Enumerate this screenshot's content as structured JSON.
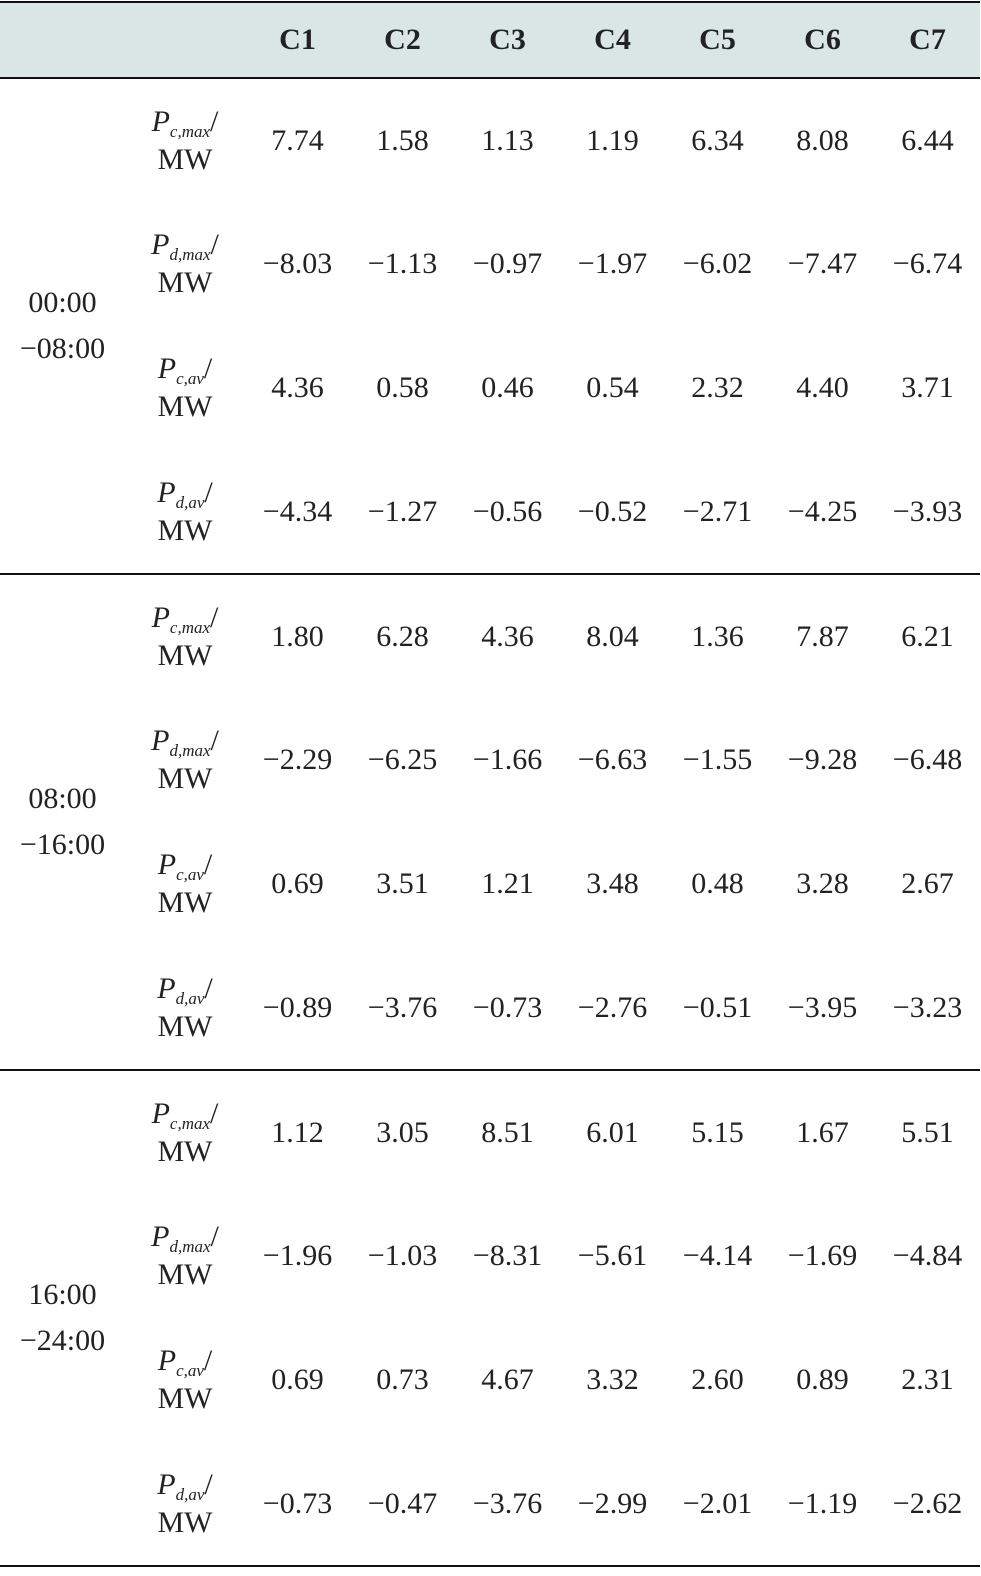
{
  "table": {
    "columns": [
      "C1",
      "C2",
      "C3",
      "C4",
      "C5",
      "C6",
      "C7"
    ],
    "groups": [
      {
        "period": "00:00\n−08:00",
        "rows": [
          {
            "symbol": "P",
            "subscript": "c,max",
            "unit": "/\nMW",
            "values": [
              "7.74",
              "1.58",
              "1.13",
              "1.19",
              "6.34",
              "8.08",
              "6.44"
            ]
          },
          {
            "symbol": "P",
            "subscript": "d,max",
            "unit": "/\nMW",
            "values": [
              "−8.03",
              "−1.13",
              "−0.97",
              "−1.97",
              "−6.02",
              "−7.47",
              "−6.74"
            ]
          },
          {
            "symbol": "P",
            "subscript": "c,av",
            "unit": "/\nMW",
            "values": [
              "4.36",
              "0.58",
              "0.46",
              "0.54",
              "2.32",
              "4.40",
              "3.71"
            ]
          },
          {
            "symbol": "P",
            "subscript": "d,av",
            "unit": "/\nMW",
            "values": [
              "−4.34",
              "−1.27",
              "−0.56",
              "−0.52",
              "−2.71",
              "−4.25",
              "−3.93"
            ]
          }
        ]
      },
      {
        "period": "08:00\n−16:00",
        "rows": [
          {
            "symbol": "P",
            "subscript": "c,max",
            "unit": "/\nMW",
            "values": [
              "1.80",
              "6.28",
              "4.36",
              "8.04",
              "1.36",
              "7.87",
              "6.21"
            ]
          },
          {
            "symbol": "P",
            "subscript": "d,max",
            "unit": "/\nMW",
            "values": [
              "−2.29",
              "−6.25",
              "−1.66",
              "−6.63",
              "−1.55",
              "−9.28",
              "−6.48"
            ]
          },
          {
            "symbol": "P",
            "subscript": "c,av",
            "unit": "/\nMW",
            "values": [
              "0.69",
              "3.51",
              "1.21",
              "3.48",
              "0.48",
              "3.28",
              "2.67"
            ]
          },
          {
            "symbol": "P",
            "subscript": "d,av",
            "unit": "/\nMW",
            "values": [
              "−0.89",
              "−3.76",
              "−0.73",
              "−2.76",
              "−0.51",
              "−3.95",
              "−3.23"
            ]
          }
        ]
      },
      {
        "period": "16:00\n−24:00",
        "rows": [
          {
            "symbol": "P",
            "subscript": "c,max",
            "unit": "/\nMW",
            "values": [
              "1.12",
              "3.05",
              "8.51",
              "6.01",
              "5.15",
              "1.67",
              "5.51"
            ]
          },
          {
            "symbol": "P",
            "subscript": "d,max",
            "unit": "/\nMW",
            "values": [
              "−1.96",
              "−1.03",
              "−8.31",
              "−5.61",
              "−4.14",
              "−1.69",
              "−4.84"
            ]
          },
          {
            "symbol": "P",
            "subscript": "c,av",
            "unit": "/\nMW",
            "values": [
              "0.69",
              "0.73",
              "4.67",
              "3.32",
              "2.60",
              "0.89",
              "2.31"
            ]
          },
          {
            "symbol": "P",
            "subscript": "d,av",
            "unit": "/\nMW",
            "values": [
              "−0.73",
              "−0.47",
              "−3.76",
              "−2.99",
              "−2.01",
              "−1.19",
              "−2.62"
            ]
          }
        ]
      }
    ]
  }
}
